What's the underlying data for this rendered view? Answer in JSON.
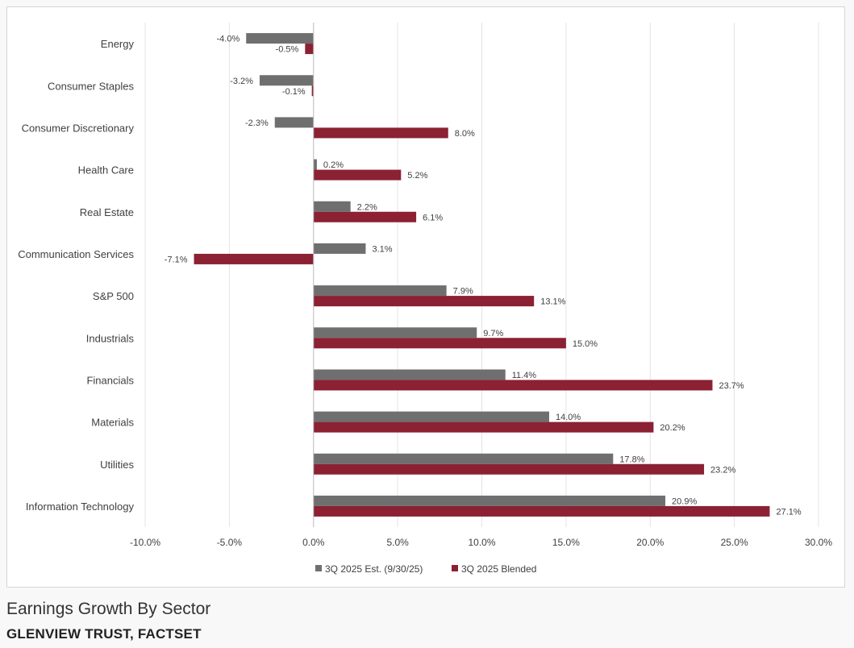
{
  "chart_data": {
    "type": "bar",
    "orientation": "horizontal",
    "categories": [
      "Energy",
      "Consumer Staples",
      "Consumer Discretionary",
      "Health Care",
      "Real Estate",
      "Communication Services",
      "S&P 500",
      "Industrials",
      "Financials",
      "Materials",
      "Utilities",
      "Information Technology"
    ],
    "series": [
      {
        "name": "3Q 2025 Est. (9/30/25)",
        "color": "#6f6f6f",
        "values": [
          -4.0,
          -3.2,
          -2.3,
          0.2,
          2.2,
          3.1,
          7.9,
          9.7,
          11.4,
          14.0,
          17.8,
          20.9
        ],
        "labels": [
          "-4.0%",
          "-3.2%",
          "-2.3%",
          "0.2%",
          "2.2%",
          "3.1%",
          "7.9%",
          "9.7%",
          "11.4%",
          "14.0%",
          "17.8%",
          "20.9%"
        ]
      },
      {
        "name": "3Q 2025 Blended",
        "color": "#8b2133",
        "values": [
          -0.5,
          -0.1,
          8.0,
          5.2,
          6.1,
          -7.1,
          13.1,
          15.0,
          23.7,
          20.2,
          23.2,
          27.1
        ],
        "labels": [
          "-0.5%",
          "-0.1%",
          "8.0%",
          "5.2%",
          "6.1%",
          "-7.1%",
          "13.1%",
          "15.0%",
          "23.7%",
          "20.2%",
          "23.2%",
          "27.1%"
        ]
      }
    ],
    "xlim": [
      -10,
      30
    ],
    "xticks": [
      -10,
      -5,
      0,
      5,
      10,
      15,
      20,
      25,
      30
    ],
    "xtick_labels": [
      "-10.0%",
      "-5.0%",
      "0.0%",
      "5.0%",
      "10.0%",
      "15.0%",
      "20.0%",
      "25.0%",
      "30.0%"
    ],
    "grid": true,
    "legend_position": "bottom",
    "title": "",
    "xlabel": "",
    "ylabel": ""
  },
  "caption": {
    "title": "Earnings Growth By Sector",
    "source": "GLENVIEW TRUST, FACTSET"
  }
}
